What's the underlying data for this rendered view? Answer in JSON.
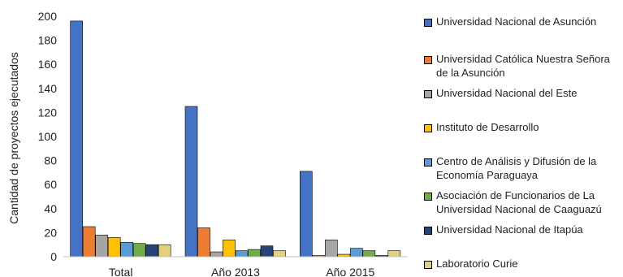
{
  "chart_data": {
    "type": "bar",
    "ylabel": "Cantidad de proyectos ejecutados",
    "ylim": [
      0,
      200
    ],
    "yticks": [
      0,
      20,
      40,
      60,
      80,
      100,
      120,
      140,
      160,
      180,
      200
    ],
    "categories": [
      "Total",
      "Año 2013",
      "Año 2015"
    ],
    "grid": false,
    "legend_position": "right",
    "series": [
      {
        "name": "Universidad Nacional de Asunción",
        "color": "#4472c4",
        "values": [
          196,
          125,
          71
        ]
      },
      {
        "name": "Universidad Católica Nuestra Señora\nde la Asunción",
        "color": "#ed7d31",
        "values": [
          25,
          24,
          1
        ]
      },
      {
        "name": "Universidad Nacional del Este",
        "color": "#a5a5a5",
        "values": [
          18,
          4,
          14
        ]
      },
      {
        "name": "Instituto de Desarrollo",
        "color": "#ffc000",
        "values": [
          16,
          14,
          2
        ]
      },
      {
        "name": "Centro de Análisis y Difusión de la\nEconomía Paraguaya",
        "color": "#5b9bd5",
        "values": [
          12,
          5,
          7
        ]
      },
      {
        "name": "Asociación de Funcionarios de La\nUniversidad Nacional de Caaguazú",
        "color": "#70ad47",
        "values": [
          11,
          6,
          5
        ]
      },
      {
        "name": "Universidad Nacional de Itapúa",
        "color": "#264478",
        "values": [
          10,
          9,
          1
        ]
      },
      {
        "name": "Laboratorio Curie",
        "color": "#e3d07a",
        "values": [
          10,
          5,
          5
        ]
      }
    ]
  }
}
